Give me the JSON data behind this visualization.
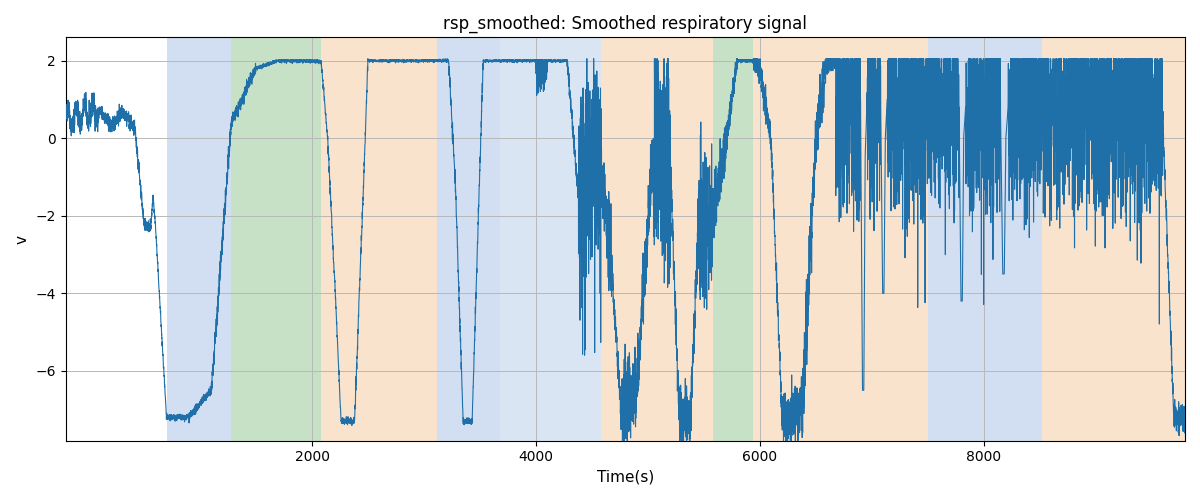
{
  "title": "rsp_smoothed: Smoothed respiratory signal",
  "xlabel": "Time(s)",
  "ylabel": "v",
  "xlim": [
    -200,
    9800
  ],
  "ylim": [
    -7.8,
    2.6
  ],
  "yticks": [
    2,
    0,
    -2,
    -4,
    -6
  ],
  "xticks": [
    2000,
    4000,
    6000,
    8000
  ],
  "line_color": "#1f6fa8",
  "line_width": 0.8,
  "bg_color": "#ffffff",
  "grid_color": "#b8b8b8",
  "bands": [
    {
      "xmin": 700,
      "xmax": 1280,
      "color": "#aec6e8",
      "alpha": 0.55
    },
    {
      "xmin": 1280,
      "xmax": 2080,
      "color": "#90c490",
      "alpha": 0.5
    },
    {
      "xmin": 2080,
      "xmax": 3120,
      "color": "#f5c99a",
      "alpha": 0.5
    },
    {
      "xmin": 3120,
      "xmax": 3680,
      "color": "#aec6e8",
      "alpha": 0.55
    },
    {
      "xmin": 3680,
      "xmax": 4580,
      "color": "#aec6e8",
      "alpha": 0.45
    },
    {
      "xmin": 4580,
      "xmax": 5580,
      "color": "#f5c99a",
      "alpha": 0.5
    },
    {
      "xmin": 5580,
      "xmax": 5940,
      "color": "#90c490",
      "alpha": 0.5
    },
    {
      "xmin": 5940,
      "xmax": 6680,
      "color": "#f5c99a",
      "alpha": 0.5
    },
    {
      "xmin": 6680,
      "xmax": 7500,
      "color": "#f5c99a",
      "alpha": 0.5
    },
    {
      "xmin": 7500,
      "xmax": 8520,
      "color": "#aec6e8",
      "alpha": 0.55
    },
    {
      "xmin": 8520,
      "xmax": 9800,
      "color": "#f5c99a",
      "alpha": 0.5
    }
  ],
  "seed": 42,
  "total_samples": 10000
}
